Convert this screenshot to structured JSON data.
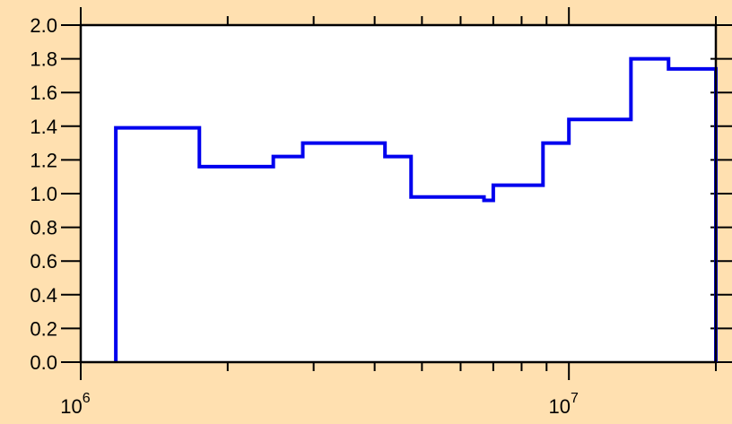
{
  "chart_data": {
    "type": "line",
    "step": true,
    "title": "",
    "xlabel": "",
    "ylabel": "",
    "x_scale": "log",
    "xlim": [
      1000000,
      20000000
    ],
    "ylim": [
      0,
      2.0
    ],
    "grid": false,
    "line_color": "#0000ee",
    "plot_background": "#ffffff",
    "page_background": "#ffe0b0",
    "y_ticks": [
      {
        "value": 0.0,
        "label": "0.0"
      },
      {
        "value": 0.2,
        "label": "0.2"
      },
      {
        "value": 0.4,
        "label": "0.4"
      },
      {
        "value": 0.6,
        "label": "0.6"
      },
      {
        "value": 0.8,
        "label": "0.8"
      },
      {
        "value": 1.0,
        "label": "1.0"
      },
      {
        "value": 1.2,
        "label": "1.2"
      },
      {
        "value": 1.4,
        "label": "1.4"
      },
      {
        "value": 1.6,
        "label": "1.6"
      },
      {
        "value": 1.8,
        "label": "1.8"
      },
      {
        "value": 2.0,
        "label": "2.0"
      }
    ],
    "x_major_ticks": [
      {
        "value": 1000000,
        "base": "10",
        "exp": "6"
      },
      {
        "value": 10000000,
        "base": "10",
        "exp": "7"
      }
    ],
    "x_minor_ticks": [
      2000000,
      3000000,
      4000000,
      5000000,
      6000000,
      7000000,
      8000000,
      9000000,
      20000000
    ],
    "bins": [
      {
        "x0": 1180000,
        "x1": 1750000,
        "y": 1.39
      },
      {
        "x0": 1750000,
        "x1": 2480000,
        "y": 1.16
      },
      {
        "x0": 2480000,
        "x1": 2850000,
        "y": 1.22
      },
      {
        "x0": 2850000,
        "x1": 4200000,
        "y": 1.3
      },
      {
        "x0": 4200000,
        "x1": 4750000,
        "y": 1.22
      },
      {
        "x0": 4750000,
        "x1": 6700000,
        "y": 0.98
      },
      {
        "x0": 6700000,
        "x1": 7000000,
        "y": 0.96
      },
      {
        "x0": 7000000,
        "x1": 8850000,
        "y": 1.05
      },
      {
        "x0": 8850000,
        "x1": 10000000,
        "y": 1.3
      },
      {
        "x0": 10000000,
        "x1": 13400000,
        "y": 1.44
      },
      {
        "x0": 13400000,
        "x1": 16000000,
        "y": 1.8
      },
      {
        "x0": 16000000,
        "x1": 20000000,
        "y": 1.74
      }
    ]
  }
}
